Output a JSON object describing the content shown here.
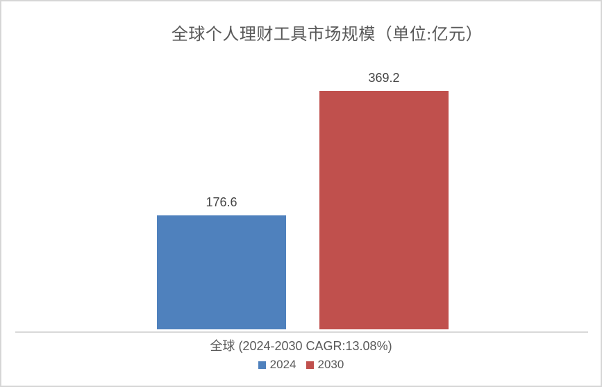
{
  "chart_data": {
    "type": "bar",
    "title": "全球个人理财工具市场规模（单位:亿元）",
    "categories": [
      "全球"
    ],
    "series": [
      {
        "name": "2024",
        "values": [
          176.6
        ],
        "color": "#4f81bd"
      },
      {
        "name": "2030",
        "values": [
          369.2
        ],
        "color": "#c0504d"
      }
    ],
    "data_labels": {
      "s2024": "176.6",
      "s2030": "369.2"
    },
    "xlabel": "全球 (2024-2030 CAGR:13.08%)",
    "ylabel": "",
    "ylim": [
      0,
      400
    ],
    "grid": false,
    "legend_position": "bottom",
    "axis_line_color": "#d9d9d9",
    "text_color": "#595959"
  }
}
